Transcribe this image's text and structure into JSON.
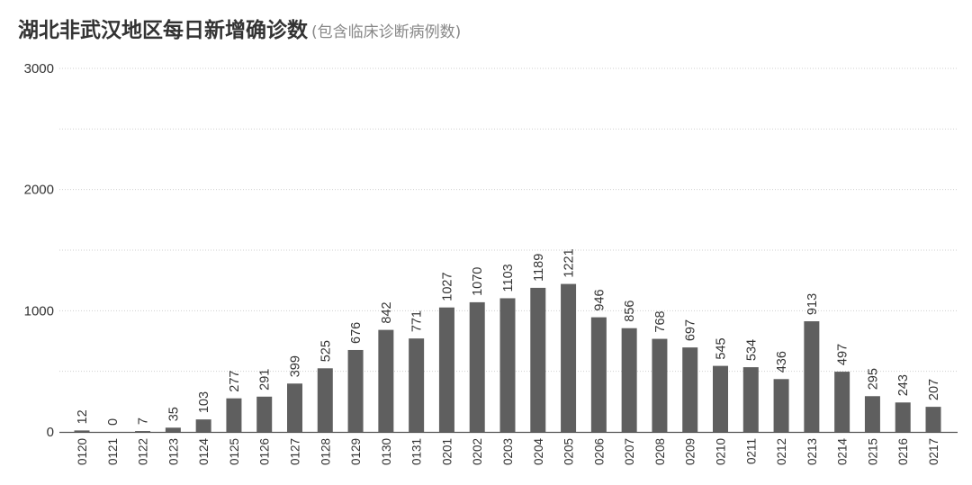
{
  "title": "湖北非武汉地区每日新增确诊数",
  "subtitle": "(包含临床诊断病例数)",
  "chart_data": {
    "type": "bar",
    "title": "湖北非武汉地区每日新增确诊数",
    "subtitle": "(包含临床诊断病例数)",
    "xlabel": "",
    "ylabel": "",
    "ylim": [
      0,
      3000
    ],
    "yticks": [
      0,
      1000,
      2000,
      3000
    ],
    "grid": true,
    "bar_color": "#5f5f5f",
    "categories": [
      "0120",
      "0121",
      "0122",
      "0123",
      "0124",
      "0125",
      "0126",
      "0127",
      "0128",
      "0129",
      "0130",
      "0131",
      "0201",
      "0202",
      "0203",
      "0204",
      "0205",
      "0206",
      "0207",
      "0208",
      "0209",
      "0210",
      "0211",
      "0212",
      "0213",
      "0214",
      "0215",
      "0216",
      "0217"
    ],
    "values": [
      12,
      0,
      7,
      35,
      103,
      277,
      291,
      399,
      525,
      676,
      842,
      771,
      1027,
      1070,
      1103,
      1189,
      1221,
      946,
      856,
      768,
      697,
      545,
      534,
      436,
      913,
      497,
      295,
      243,
      207
    ]
  }
}
